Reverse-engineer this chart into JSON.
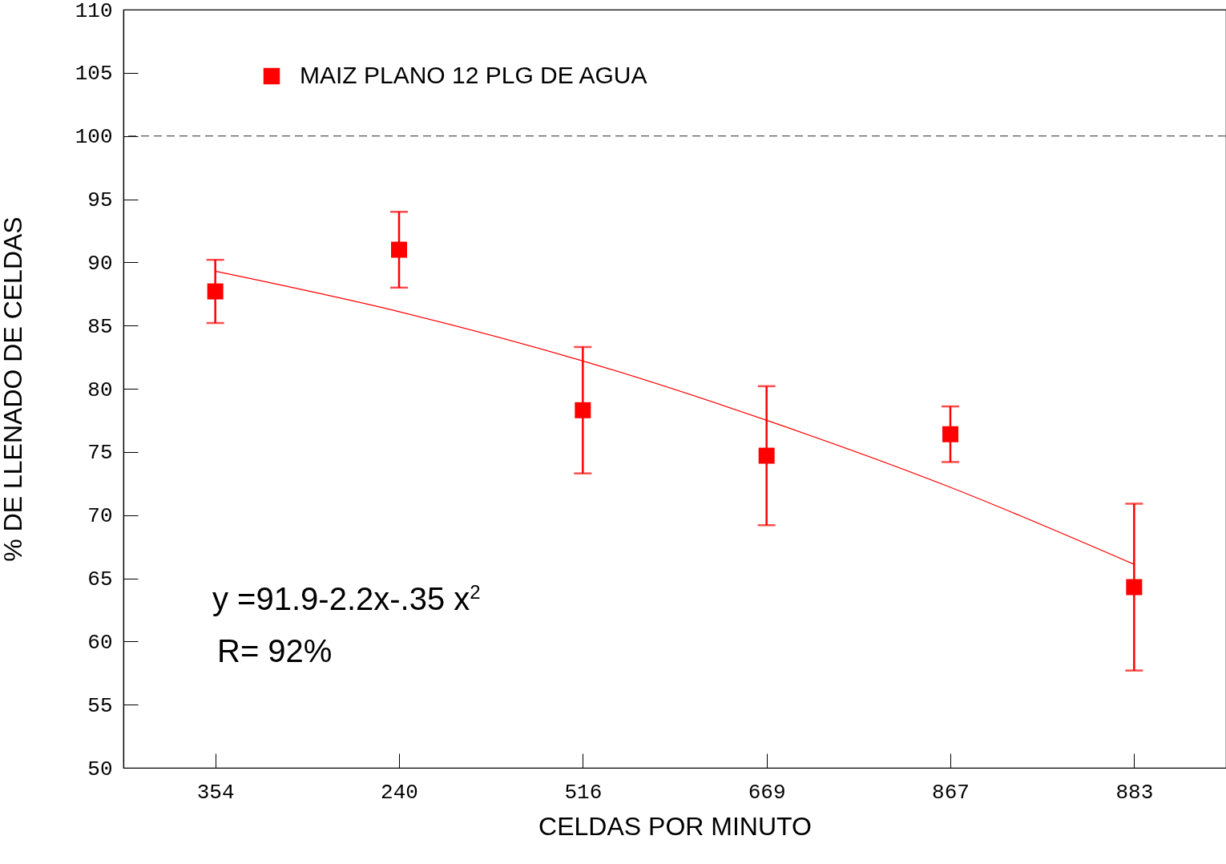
{
  "chart_data": {
    "type": "scatter",
    "xlabel": "CELDAS POR MINUTO",
    "ylabel": "% DE LLENADO DE CELDAS",
    "categories": [
      "354",
      "240",
      "516",
      "669",
      "867",
      "883"
    ],
    "series": [
      {
        "name": "MAIZ PLANO 12 PLG DE AGUA",
        "color": "#ff0000",
        "values": [
          87.7,
          91.0,
          78.3,
          74.7,
          76.4,
          64.3
        ],
        "errors": [
          2.5,
          3,
          5,
          5.5,
          2.2,
          6.6
        ],
        "marker": "square"
      },
      {
        "type": "line",
        "color": "#ff0000",
        "x": [
          "354",
          "240",
          "516",
          "669",
          "867",
          "883"
        ],
        "values": [
          89.3,
          86.1,
          82.2,
          77.5,
          72.2,
          66.1
        ]
      }
    ],
    "ylim": [
      50,
      110
    ],
    "yticks": [
      50,
      55,
      60,
      65,
      70,
      75,
      80,
      85,
      90,
      95,
      100,
      105,
      110
    ],
    "ref_lines": [
      {
        "axis": "y",
        "value": 100,
        "line_style": "dashed",
        "color": "#555555"
      }
    ],
    "annotations": [
      "y =91.9-2.2x-.35 x$^{2}$",
      "R= 92%"
    ],
    "legend": "top left",
    "grid": false
  }
}
